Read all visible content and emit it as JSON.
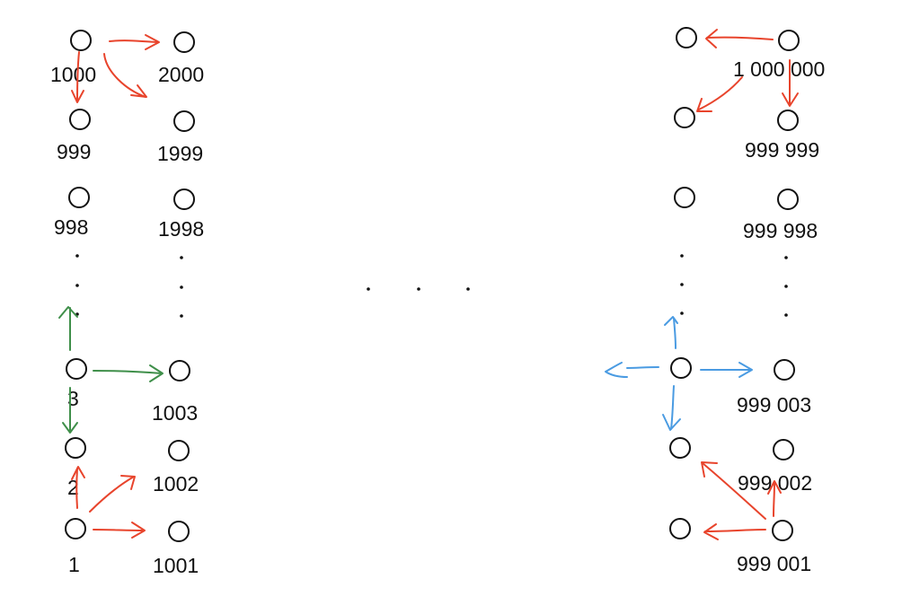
{
  "colors": {
    "ink": "#111111",
    "red_arrow": "#e8442c",
    "green_arrow": "#3f8f4a",
    "blue_arrow": "#4a9be2"
  },
  "labels": {
    "n1000": "1000",
    "n2000": "2000",
    "n999": "999",
    "n1999": "1999",
    "n998": "998",
    "n1998": "1998",
    "n3": "3",
    "n1003": "1003",
    "n2": "2",
    "n1002": "1002",
    "n1": "1",
    "n1001": "1001",
    "n1000000": "1 000 000",
    "n999999": "999 999",
    "n999998": "999 998",
    "n999003": "999 003",
    "n999002": "999 002",
    "n999001": "999 001"
  },
  "ellipsis_marks": {
    "column_dot": ".",
    "middle_dot": "."
  }
}
